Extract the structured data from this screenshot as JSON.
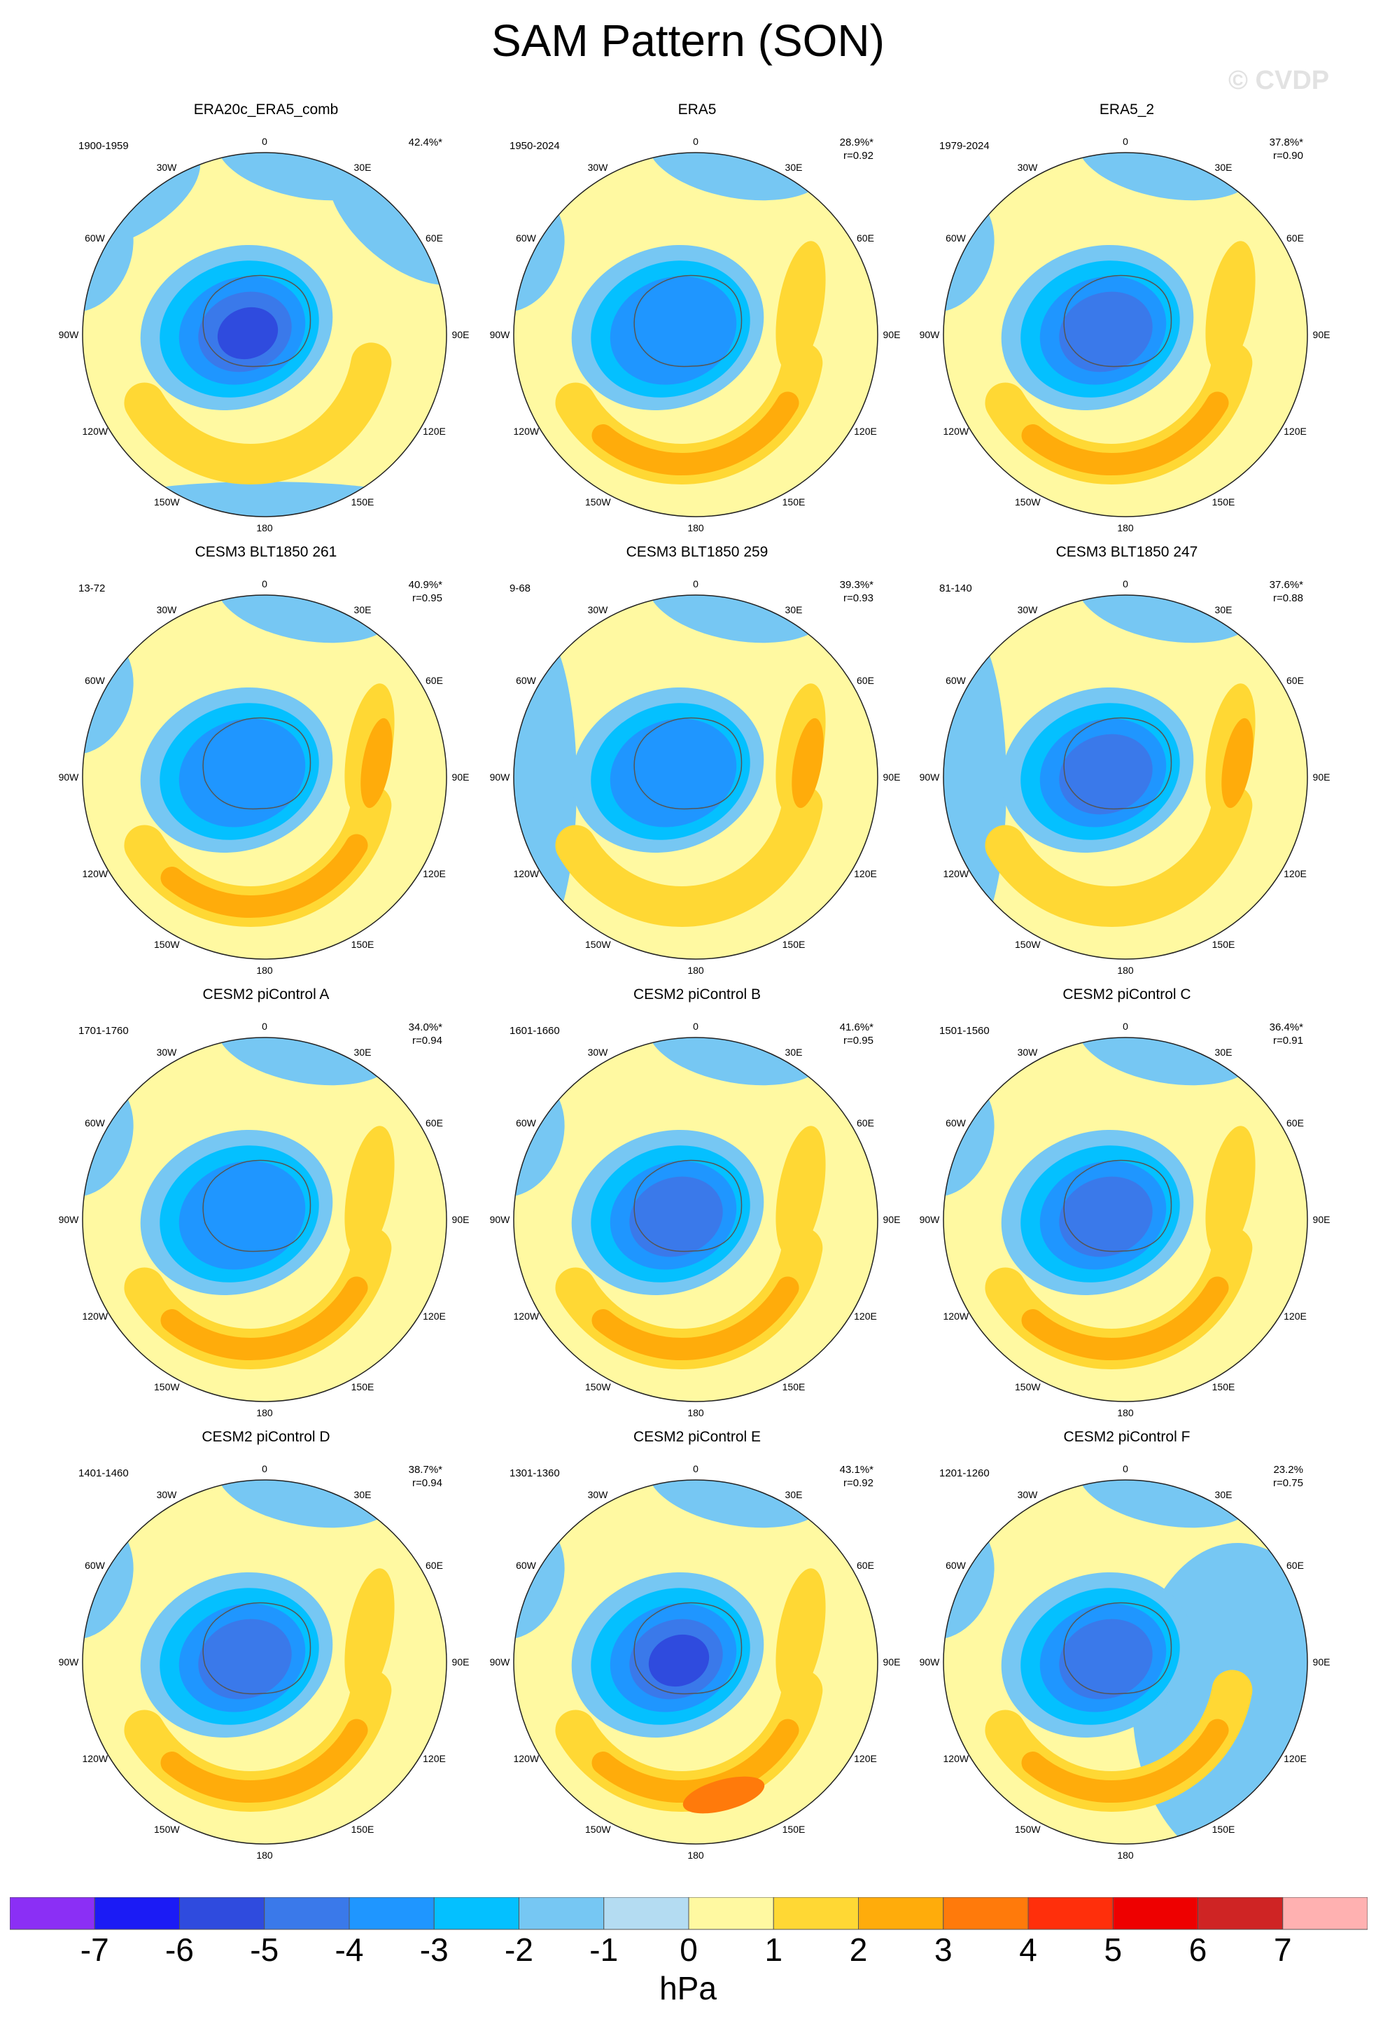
{
  "figure": {
    "title": "SAM Pattern (SON)",
    "watermark": "© CVDP",
    "colorbar_units": "hPa"
  },
  "chart_data": {
    "type": "heatmap",
    "title": "SAM Pattern (SON)",
    "variable": "sea level pressure regression (SAM pattern)",
    "projection": "south polar stereographic",
    "longitude_labels": [
      "0",
      "30E",
      "60E",
      "90E",
      "120E",
      "150E",
      "180",
      "150W",
      "120W",
      "90W",
      "60W",
      "30W"
    ],
    "colorbar": {
      "units": "hPa",
      "tick_labels": [
        "-7",
        "-6",
        "-5",
        "-4",
        "-3",
        "-2",
        "-1",
        "0",
        "1",
        "2",
        "3",
        "4",
        "5",
        "6",
        "7"
      ],
      "levels": [
        -7,
        -6,
        -5,
        -4,
        -3,
        -2,
        -1,
        0,
        1,
        2,
        3,
        4,
        5,
        6,
        7
      ],
      "colors": [
        "#8b2ff5",
        "#1b1bf5",
        "#2f4bde",
        "#3a79ea",
        "#1f96ff",
        "#04c0ff",
        "#76c7f3",
        "#b4dcf2",
        "#fff9a1",
        "#ffd834",
        "#ffac0b",
        "#ff7a0b",
        "#ff2f0b",
        "#ee0000",
        "#cf2424",
        "#ffb1b1"
      ]
    },
    "panels": [
      {
        "title": "ERA20c_ERA5_comb",
        "period": "1900-1959",
        "pct": "42.4%*",
        "r": "",
        "low_min": -5,
        "high_max": 1,
        "hi1_mag": 1,
        "hi2_mag": 0
      },
      {
        "title": "ERA5",
        "period": "1950-2024",
        "pct": "28.9%*",
        "r": "r=0.92",
        "low_min": -3,
        "high_max": 2,
        "hi1_mag": 2,
        "hi2_mag": 1
      },
      {
        "title": "ERA5_2",
        "period": "1979-2024",
        "pct": "37.8%*",
        "r": "r=0.90",
        "low_min": -4,
        "high_max": 2,
        "hi1_mag": 2,
        "hi2_mag": 1
      },
      {
        "title": "CESM3 BLT1850 261",
        "period": "13-72",
        "pct": "40.9%*",
        "r": "r=0.95",
        "low_min": -3,
        "high_max": 2,
        "hi1_mag": 2,
        "hi2_mag": 2
      },
      {
        "title": "CESM3 BLT1850 259",
        "period": "9-68",
        "pct": "39.3%*",
        "r": "r=0.93",
        "low_min": -3,
        "high_max": 2,
        "hi1_mag": 1,
        "hi2_mag": 2
      },
      {
        "title": "CESM3 BLT1850 247",
        "period": "81-140",
        "pct": "37.6%*",
        "r": "r=0.88",
        "low_min": -4,
        "high_max": 2,
        "hi1_mag": 1,
        "hi2_mag": 2
      },
      {
        "title": "CESM2 piControl A",
        "period": "1701-1760",
        "pct": "34.0%*",
        "r": "r=0.94",
        "low_min": -3,
        "high_max": 2,
        "hi1_mag": 2,
        "hi2_mag": 1
      },
      {
        "title": "CESM2 piControl B",
        "period": "1601-1660",
        "pct": "41.6%*",
        "r": "r=0.95",
        "low_min": -4,
        "high_max": 2,
        "hi1_mag": 2,
        "hi2_mag": 1
      },
      {
        "title": "CESM2 piControl C",
        "period": "1501-1560",
        "pct": "36.4%*",
        "r": "r=0.91",
        "low_min": -4,
        "high_max": 2,
        "hi1_mag": 2,
        "hi2_mag": 1
      },
      {
        "title": "CESM2 piControl D",
        "period": "1401-1460",
        "pct": "38.7%*",
        "r": "r=0.94",
        "low_min": -4,
        "high_max": 2,
        "hi1_mag": 2,
        "hi2_mag": 1
      },
      {
        "title": "CESM2 piControl E",
        "period": "1301-1360",
        "pct": "43.1%*",
        "r": "r=0.92",
        "low_min": -5,
        "high_max": 3,
        "hi1_mag": 3,
        "hi2_mag": 1
      },
      {
        "title": "CESM2 piControl F",
        "period": "1201-1260",
        "pct": "23.2%",
        "r": "r=0.75",
        "low_min": -4,
        "high_max": 2,
        "hi1_mag": 2,
        "hi2_mag": 0
      }
    ]
  }
}
